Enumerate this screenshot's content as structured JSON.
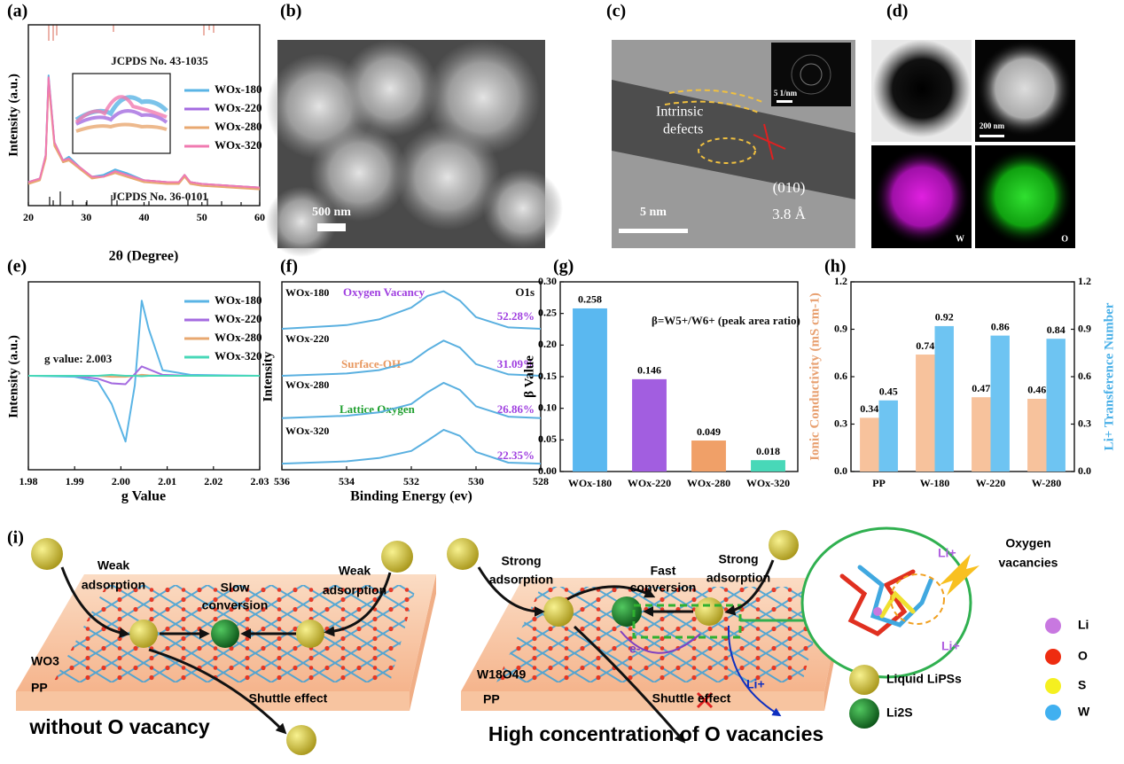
{
  "panel_labels": [
    "(a)",
    "(b)",
    "(c)",
    "(d)",
    "(e)",
    "(f)",
    "(g)",
    "(h)",
    "(i)"
  ],
  "chart_data": [
    {
      "type": "line",
      "xlabel": "2θ (Degree)",
      "ylabel": "Intensity (a.u.)",
      "x": [
        20,
        22,
        23,
        23.5,
        24.5,
        26,
        27,
        29,
        31,
        33,
        35,
        37,
        40,
        44,
        46,
        47,
        48,
        50,
        55,
        60
      ],
      "xlim": [
        20,
        60
      ],
      "xticks": [
        20,
        30,
        40,
        50,
        60
      ],
      "ylim": [
        0,
        10
      ],
      "legend": "upper right",
      "annotations": [
        "JCPDS No. 43-1035",
        "JCPDS No. 36-0101"
      ],
      "series": [
        {
          "name": "WOx-180",
          "color": "#5ab4e5",
          "values": [
            1.3,
            1.5,
            2.8,
            7.2,
            3.5,
            2.5,
            2.7,
            2.1,
            1.6,
            1.7,
            2.0,
            1.8,
            1.4,
            1.3,
            1.3,
            1.7,
            1.3,
            1.2,
            1.1,
            1.0
          ]
        },
        {
          "name": "WOx-220",
          "color": "#a46be0",
          "values": [
            1.3,
            1.5,
            2.7,
            7.0,
            3.4,
            2.4,
            2.6,
            2.0,
            1.6,
            1.6,
            1.9,
            1.7,
            1.4,
            1.3,
            1.3,
            1.6,
            1.3,
            1.2,
            1.1,
            1.0
          ]
        },
        {
          "name": "WOx-280",
          "color": "#e8a870",
          "values": [
            1.2,
            1.4,
            2.6,
            6.8,
            3.3,
            2.4,
            2.5,
            2.0,
            1.5,
            1.6,
            1.8,
            1.6,
            1.3,
            1.2,
            1.2,
            1.6,
            1.2,
            1.1,
            1.0,
            0.9
          ]
        },
        {
          "name": "WOx-320",
          "color": "#f07ab0",
          "values": [
            1.3,
            1.5,
            2.8,
            7.1,
            3.5,
            2.5,
            2.6,
            2.1,
            1.6,
            1.6,
            1.9,
            1.7,
            1.4,
            1.3,
            1.3,
            1.7,
            1.3,
            1.2,
            1.1,
            1.0
          ]
        }
      ]
    },
    {
      "type": "line",
      "xlabel": "g Value",
      "ylabel": "Intensity (a.u.)",
      "x": [
        1.98,
        1.99,
        1.995,
        1.998,
        2.001,
        2.003,
        2.0045,
        2.006,
        2.009,
        2.015,
        2.03
      ],
      "xlim": [
        1.98,
        2.03
      ],
      "xticks": [
        1.98,
        1.99,
        {
          "value": 2,
          "label": "2.00"
        },
        2.01,
        2.02,
        2.03
      ],
      "ylim": [
        -10,
        10
      ],
      "legend": "upper right",
      "annotations": [
        "g value: 2.003"
      ],
      "series": [
        {
          "name": "WOx-180",
          "color": "#5ab4e5",
          "values": [
            0,
            -0.1,
            -0.6,
            -3,
            -7,
            -1,
            8,
            5,
            0.6,
            0.1,
            0
          ]
        },
        {
          "name": "WOx-220",
          "color": "#a46be0",
          "values": [
            0,
            0,
            -0.3,
            -0.8,
            -0.9,
            0.2,
            1.0,
            0.7,
            0.1,
            0,
            0
          ]
        },
        {
          "name": "WOx-280",
          "color": "#e8a870",
          "values": [
            0,
            0,
            0,
            -0.1,
            -0.1,
            0,
            0.1,
            0.05,
            0,
            0,
            0
          ]
        },
        {
          "name": "WOx-320",
          "color": "#48d8b8",
          "values": [
            0,
            0,
            0,
            0.1,
            0,
            0,
            -0.05,
            0,
            0,
            0,
            0
          ]
        }
      ]
    },
    {
      "type": "line",
      "xlabel": "Binding Energy (ev)",
      "ylabel": "Intensity",
      "x": [
        536,
        534,
        533,
        532,
        531.5,
        531,
        530.5,
        530,
        529,
        528
      ],
      "xlim": [
        536,
        528
      ],
      "xticks": [
        536,
        534,
        532,
        530,
        528
      ],
      "ylim": [
        0,
        4
      ],
      "annotations": [
        "Oxygen Vacancy",
        "O1s",
        "52.28%",
        "Surface-OH",
        "31.09%",
        "Lattice Oxygen",
        "26.86%",
        "22.35%"
      ],
      "series": [
        {
          "name": "WOx-180",
          "color": "#5ab0e0",
          "values": [
            3.0,
            3.08,
            3.2,
            3.45,
            3.7,
            3.8,
            3.6,
            3.25,
            3.03,
            3.0
          ]
        },
        {
          "name": "WOx-220",
          "color": "#5ab0e0",
          "values": [
            2.0,
            2.05,
            2.12,
            2.3,
            2.55,
            2.75,
            2.6,
            2.25,
            2.03,
            2.0
          ]
        },
        {
          "name": "WOx-280",
          "color": "#5ab0e0",
          "values": [
            1.1,
            1.15,
            1.22,
            1.4,
            1.65,
            1.85,
            1.7,
            1.35,
            1.13,
            1.1
          ]
        },
        {
          "name": "WOx-320",
          "color": "#5ab0e0",
          "values": [
            0.13,
            0.18,
            0.25,
            0.4,
            0.62,
            0.85,
            0.72,
            0.38,
            0.15,
            0.13
          ]
        }
      ]
    },
    {
      "type": "bar",
      "ylabel": "β Value",
      "annotations": [
        "β=W5+/W6+ (peak area ratio)"
      ],
      "categories": [
        "WOx-180",
        "WOx-220",
        "WOx-280",
        "WOx-320"
      ],
      "values": [
        0.258,
        0.146,
        0.049,
        0.018
      ],
      "colors": [
        "#5ab8f0",
        "#a25ee0",
        "#f0a068",
        "#48d8b8"
      ],
      "ylim": [
        0,
        0.3
      ],
      "yticks": [
        {
          "value": 0,
          "label": "0.00"
        },
        0.05,
        {
          "value": 0.1,
          "label": "0.10"
        },
        0.15,
        {
          "value": 0.2,
          "label": "0.20"
        },
        0.25,
        {
          "value": 0.3,
          "label": "0.30"
        }
      ]
    },
    {
      "type": "bar",
      "ylabel": "Ionic Conductivity (mS cm-1)",
      "y2label": "Li+ Transference Number",
      "categories": [
        "PP",
        "W-180",
        "W-220",
        "W-280"
      ],
      "series": [
        {
          "color": "#f7c29c",
          "values": [
            0.34,
            0.74,
            0.47,
            0.46
          ]
        },
        {
          "color": "#6ec4f2",
          "axis": "y2",
          "values": [
            0.45,
            0.92,
            0.86,
            0.84
          ]
        }
      ],
      "ylim": [
        0,
        1.2
      ],
      "yticks": [
        {
          "value": 0,
          "label": "0.0"
        },
        0.3,
        0.6,
        0.9,
        1.2
      ],
      "y2lim": [
        0,
        1.2
      ],
      "y2ticks": [
        {
          "value": 0,
          "label": "0.0"
        },
        0.3,
        0.6,
        0.9,
        1.2
      ]
    }
  ],
  "images": {
    "b": {
      "scale_bar": "500 nm"
    },
    "c": {
      "scale_bar": "5 nm",
      "inset_scale": "5 1/nm",
      "defect_label": [
        "Intrinsic",
        "defects"
      ],
      "plane": "(010)",
      "spacing": "3.8 Å"
    },
    "d": {
      "scale_bar": "200 nm",
      "maps": [
        "W",
        "O"
      ]
    }
  },
  "diagram": {
    "left": {
      "arrows": [
        [
          "Weak",
          "adsorption"
        ],
        [
          "Slow",
          "conversion"
        ],
        [
          "Weak",
          "adsorption"
        ]
      ],
      "substrate": "WO3",
      "separator": "PP",
      "shuttle": "Shuttle effect",
      "caption": "without O vacancy"
    },
    "right": {
      "arrows": [
        [
          "Strong",
          "adsorption"
        ],
        [
          "Fast",
          "conversion"
        ],
        [
          "Strong",
          "adsorption"
        ]
      ],
      "substrate": "W18O49",
      "separator": "PP",
      "shuttle": "Shuttle effect",
      "ion": "Li+",
      "electron": "e-",
      "caption": "High concentration of O vacancies"
    },
    "inset": {
      "ion_top": "Li+",
      "ion_bottom": "Li+",
      "vacancy": [
        "Oxygen",
        "vacancies"
      ]
    },
    "legend": [
      "Liquid LiPSs",
      "Li2S"
    ],
    "atoms": [
      "Li",
      "O",
      "S",
      "W"
    ]
  }
}
